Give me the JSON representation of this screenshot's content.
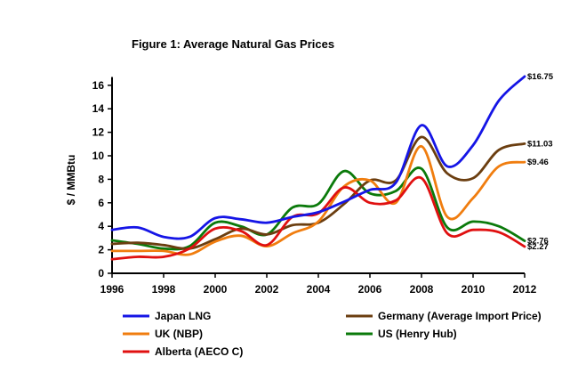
{
  "chart_data": {
    "type": "line",
    "title": "Figure 1: Average Natural Gas Prices",
    "xlabel": "",
    "ylabel": "$ / MMBtu",
    "x": [
      1996,
      1997,
      1998,
      1999,
      2000,
      2001,
      2002,
      2003,
      2004,
      2005,
      2006,
      2007,
      2008,
      2009,
      2010,
      2011,
      2012
    ],
    "x_ticks": [
      "1996",
      "1998",
      "2000",
      "2002",
      "2004",
      "2006",
      "2008",
      "2010",
      "2012"
    ],
    "y_ticks": [
      "0",
      "2",
      "4",
      "6",
      "8",
      "10",
      "12",
      "14",
      "16"
    ],
    "xlim": [
      1996,
      2012
    ],
    "ylim": [
      0,
      17
    ],
    "grid": false,
    "legend_position": "bottom",
    "series": [
      {
        "name": "Japan LNG",
        "color": "#1515e6",
        "values": [
          3.7,
          3.9,
          3.1,
          3.1,
          4.7,
          4.6,
          4.3,
          4.8,
          5.2,
          6.1,
          7.1,
          7.7,
          12.6,
          9.1,
          10.9,
          14.7,
          16.75
        ],
        "end_label": "$16.75"
      },
      {
        "name": "Germany (Average Import Price)",
        "color": "#6b3e10",
        "values": [
          2.5,
          2.6,
          2.4,
          2.1,
          2.9,
          3.8,
          3.3,
          4.1,
          4.3,
          5.9,
          7.9,
          7.9,
          11.6,
          8.5,
          8.1,
          10.5,
          11.03
        ],
        "end_label": "$11.03"
      },
      {
        "name": "UK (NBP)",
        "color": "#f07d0f",
        "values": [
          1.9,
          1.9,
          1.9,
          1.6,
          2.7,
          3.2,
          2.3,
          3.4,
          4.4,
          7.4,
          7.9,
          6.0,
          10.8,
          4.8,
          6.4,
          9.1,
          9.46
        ],
        "end_label": "$9.46"
      },
      {
        "name": "US (Henry Hub)",
        "color": "#0b7a0b",
        "values": [
          2.8,
          2.5,
          2.1,
          2.3,
          4.3,
          4.0,
          3.3,
          5.6,
          5.9,
          8.7,
          6.8,
          7.0,
          8.9,
          3.9,
          4.4,
          4.0,
          2.76
        ],
        "end_label": "$2.76"
      },
      {
        "name": "Alberta (AECO C)",
        "color": "#e01010",
        "values": [
          1.2,
          1.4,
          1.4,
          2.1,
          3.8,
          3.6,
          2.4,
          4.8,
          5.1,
          7.3,
          6.0,
          6.2,
          8.1,
          3.4,
          3.7,
          3.5,
          2.27
        ],
        "end_label": "$2.27"
      }
    ]
  }
}
